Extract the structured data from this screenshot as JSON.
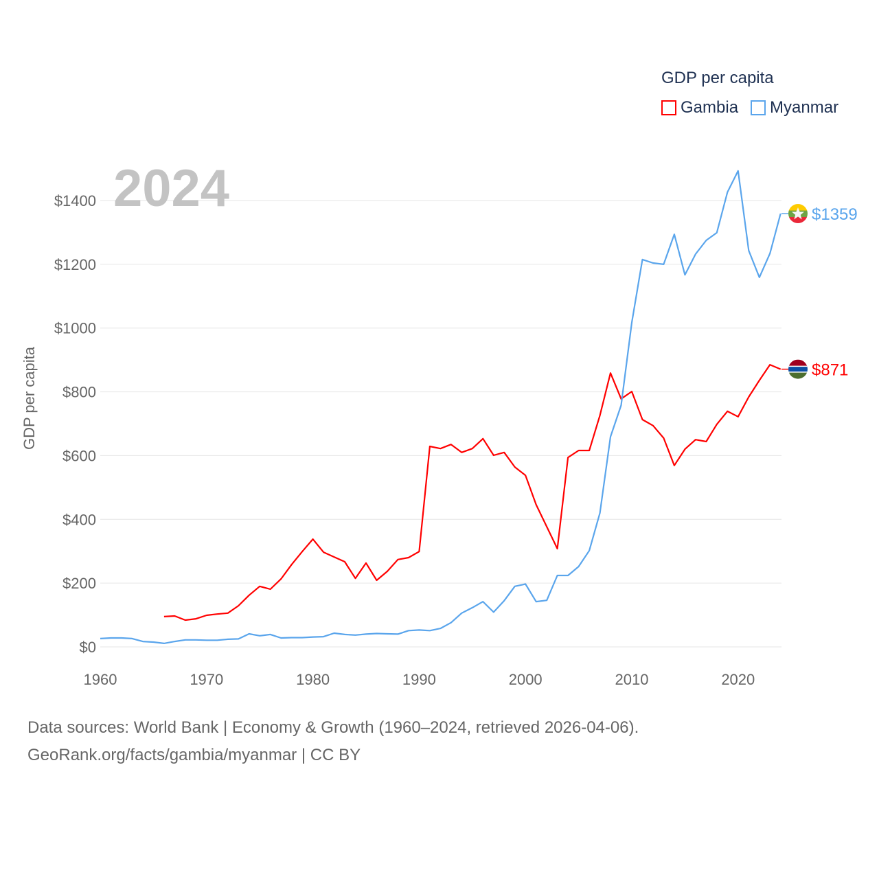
{
  "chart_data": {
    "type": "line",
    "title": "",
    "year_label": "2024",
    "ylabel": "GDP per capita",
    "xlabel": "",
    "xlim": [
      1960,
      2024
    ],
    "ylim": [
      0,
      1500
    ],
    "x_ticks": [
      1960,
      1970,
      1980,
      1990,
      2000,
      2010,
      2020
    ],
    "y_ticks": [
      0,
      200,
      400,
      600,
      800,
      1000,
      1200,
      1400
    ],
    "y_tick_labels": [
      "$0",
      "$200",
      "$400",
      "$600",
      "$800",
      "$1000",
      "$1200",
      "$1400"
    ],
    "grid": true,
    "legend": {
      "title": "GDP per capita",
      "placement": "top-right"
    },
    "series": [
      {
        "name": "Gambia",
        "color": "#ff0000",
        "start_year": 1966,
        "end_label": "$871",
        "values": [
          95,
          97,
          84,
          88,
          99,
          103,
          106,
          129,
          162,
          190,
          181,
          213,
          258,
          299,
          338,
          297,
          282,
          267,
          215,
          263,
          209,
          237,
          274,
          280,
          299,
          629,
          622,
          635,
          610,
          622,
          653,
          601,
          610,
          564,
          538,
          446,
          377,
          308,
          594,
          616,
          616,
          726,
          859,
          778,
          801,
          713,
          694,
          655,
          569,
          620,
          650,
          644,
          698,
          739,
          722,
          784,
          836,
          885,
          871
        ]
      },
      {
        "name": "Myanmar",
        "color": "#5aa5ec",
        "start_year": 1960,
        "end_label": "$1359",
        "values": [
          26,
          28,
          28,
          26,
          17,
          15,
          11,
          17,
          22,
          22,
          21,
          21,
          24,
          25,
          41,
          35,
          39,
          28,
          29,
          29,
          31,
          32,
          43,
          39,
          37,
          40,
          42,
          41,
          40,
          51,
          53,
          51,
          58,
          76,
          106,
          123,
          142,
          109,
          145,
          190,
          197,
          142,
          146,
          224,
          224,
          252,
          302,
          420,
          659,
          758,
          1017,
          1215,
          1204,
          1200,
          1294,
          1167,
          1232,
          1275,
          1299,
          1426,
          1493,
          1243,
          1159,
          1234,
          1359
        ]
      }
    ]
  },
  "footer": {
    "line1": "Data sources: World Bank | Economy & Growth (1960–2024, retrieved 2026-04-06).",
    "line2": "GeoRank.org/facts/gambia/myanmar | CC BY"
  }
}
